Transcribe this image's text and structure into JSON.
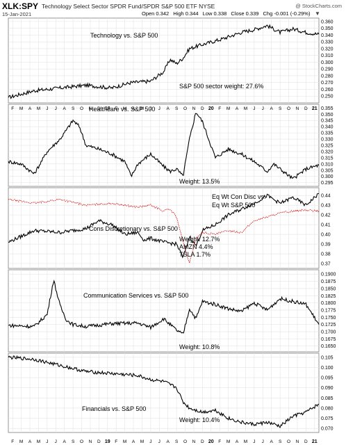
{
  "header": {
    "symbol": "XLK:SPY",
    "description": "Technology Select Sector SPDR Fund/SPDR S&P 500 ETF",
    "exchange": "NYSE",
    "date": "15-Jan-2021",
    "brand": "@ StockCharts.com",
    "quote": {
      "open": "Open 0.342",
      "high": "High 0.344",
      "low": "Low 0.338",
      "close": "Close 0.339",
      "chg": "Chg -0.001 (-0.29%)"
    }
  },
  "chart_data": [
    {
      "type": "line",
      "label": "Technology vs. S&P 500",
      "note": "S&P 500 sector weight: 27.6%",
      "ylim": [
        0.24,
        0.365
      ],
      "yticks": [
        "0.360",
        "0.350",
        "0.340",
        "0.330",
        "0.320",
        "0.310",
        "0.300",
        "0.290",
        "0.280",
        "0.270",
        "0.260",
        "0.250"
      ],
      "series": [
        {
          "color": "#000000",
          "x": [
            0,
            4,
            8,
            12,
            16,
            19,
            22,
            24,
            25,
            26,
            27,
            28,
            30,
            33,
            36,
            38,
            40,
            42,
            44,
            46,
            48
          ],
          "y": [
            0.248,
            0.258,
            0.262,
            0.266,
            0.262,
            0.27,
            0.272,
            0.286,
            0.304,
            0.298,
            0.306,
            0.32,
            0.326,
            0.334,
            0.344,
            0.348,
            0.354,
            0.344,
            0.349,
            0.344,
            0.341
          ]
        }
      ]
    },
    {
      "type": "line",
      "label": "Healthcare vs. S&P 500",
      "note": "Weight: 13.5%",
      "ylim": [
        0.292,
        0.358
      ],
      "yticks": [
        "0.355",
        "0.350",
        "0.345",
        "0.340",
        "0.335",
        "0.330",
        "0.325",
        "0.320",
        "0.315",
        "0.310",
        "0.305",
        "0.300",
        "0.295"
      ],
      "series": [
        {
          "color": "#000000",
          "x": [
            0,
            2,
            4,
            6,
            8,
            10,
            11,
            12,
            14,
            16,
            18,
            19,
            20,
            22,
            24,
            25,
            26,
            27,
            28,
            29,
            30,
            32,
            34,
            36,
            38,
            40,
            41,
            42,
            43,
            44,
            46,
            48
          ],
          "y": [
            0.312,
            0.31,
            0.302,
            0.32,
            0.33,
            0.345,
            0.34,
            0.325,
            0.322,
            0.318,
            0.312,
            0.3,
            0.31,
            0.318,
            0.308,
            0.304,
            0.306,
            0.3,
            0.33,
            0.352,
            0.344,
            0.315,
            0.322,
            0.318,
            0.312,
            0.304,
            0.31,
            0.306,
            0.302,
            0.298,
            0.306,
            0.309
          ]
        }
      ]
    },
    {
      "type": "line",
      "label": "Cons Discretionary vs. S&P 500",
      "note": "Weight: 12.7%",
      "extra_notes": [
        "AMZN 4.4%",
        "TSLA 1.7%"
      ],
      "overlay_label": [
        "Eq Wt Con Disc vs.",
        "Eq Wt S&P 500"
      ],
      "ylim": [
        0.365,
        0.448
      ],
      "yticks": [
        "0.44",
        "0.43",
        "0.42",
        "0.41",
        "0.40",
        "0.39",
        "0.38",
        "0.37"
      ],
      "series": [
        {
          "color": "#000000",
          "x": [
            0,
            4,
            8,
            12,
            14,
            16,
            18,
            20,
            21,
            22,
            24,
            26,
            27,
            28,
            29,
            30,
            32,
            34,
            36,
            38,
            40,
            42,
            44,
            46,
            48
          ],
          "y": [
            0.392,
            0.404,
            0.402,
            0.406,
            0.414,
            0.41,
            0.4,
            0.402,
            0.394,
            0.396,
            0.392,
            0.39,
            0.376,
            0.398,
            0.388,
            0.404,
            0.41,
            0.42,
            0.426,
            0.432,
            0.44,
            0.432,
            0.438,
            0.43,
            0.442
          ]
        },
        {
          "color": "#d91a1a",
          "x": [
            0,
            4,
            8,
            12,
            16,
            20,
            22,
            24,
            25,
            26,
            27,
            28,
            29,
            30,
            32,
            34,
            36,
            38,
            40,
            42,
            44,
            46,
            48
          ],
          "y": [
            0.436,
            0.432,
            0.436,
            0.43,
            0.432,
            0.428,
            0.43,
            0.424,
            0.426,
            0.418,
            0.392,
            0.37,
            0.396,
            0.402,
            0.4,
            0.404,
            0.402,
            0.414,
            0.418,
            0.422,
            0.424,
            0.425,
            0.424
          ]
        }
      ]
    },
    {
      "type": "line",
      "label": "Communication Services vs. S&P 500",
      "note": "Weight: 10.8%",
      "ylim": [
        0.163,
        0.1915
      ],
      "yticks": [
        "0.1900",
        "0.1875",
        "0.1850",
        "0.1825",
        "0.1800",
        "0.1775",
        "0.1750",
        "0.1725",
        "0.1700",
        "0.1675",
        "0.1650"
      ],
      "series": [
        {
          "color": "#000000",
          "x": [
            0,
            4,
            6,
            7,
            8,
            9,
            10,
            12,
            16,
            20,
            22,
            24,
            26,
            27,
            28,
            29,
            30,
            32,
            34,
            36,
            38,
            40,
            42,
            44,
            46,
            48
          ],
          "y": [
            0.1722,
            0.1718,
            0.176,
            0.188,
            0.179,
            0.174,
            0.1725,
            0.1718,
            0.1728,
            0.173,
            0.1715,
            0.1745,
            0.1705,
            0.169,
            0.178,
            0.1745,
            0.1805,
            0.1795,
            0.178,
            0.177,
            0.18,
            0.1775,
            0.1815,
            0.1805,
            0.1795,
            0.1725
          ]
        }
      ]
    },
    {
      "type": "line",
      "label": "Financials vs. S&P 500",
      "note": "Weight: 10.4%",
      "ylim": [
        0.068,
        0.107
      ],
      "yticks": [
        "0.105",
        "0.100",
        "0.095",
        "0.090",
        "0.085",
        "0.080",
        "0.075",
        "0.070"
      ],
      "series": [
        {
          "color": "#000000",
          "x": [
            0,
            4,
            8,
            12,
            16,
            20,
            22,
            24,
            26,
            27,
            28,
            30,
            32,
            34,
            36,
            38,
            40,
            42,
            44,
            46,
            48
          ],
          "y": [
            0.105,
            0.104,
            0.101,
            0.098,
            0.097,
            0.096,
            0.094,
            0.093,
            0.09,
            0.083,
            0.08,
            0.078,
            0.079,
            0.075,
            0.073,
            0.072,
            0.073,
            0.071,
            0.076,
            0.078,
            0.082
          ]
        }
      ]
    }
  ],
  "x_axis": {
    "month_labels": [
      "F",
      "M",
      "A",
      "M",
      "J",
      "J",
      "A",
      "S",
      "O",
      "N",
      "D",
      "19",
      "F",
      "M",
      "A",
      "M",
      "J",
      "J",
      "A",
      "S",
      "O",
      "N",
      "D",
      "20",
      "F",
      "M",
      "A",
      "M",
      "J",
      "J",
      "A",
      "S",
      "O",
      "N",
      "D",
      "21"
    ],
    "year_labels": [
      "19",
      "20",
      "21"
    ]
  },
  "colors": {
    "primary_line": "#000000",
    "overlay_line": "#d91a1a",
    "grid": "#e3e3e3",
    "axis": "#7a7a7a"
  }
}
